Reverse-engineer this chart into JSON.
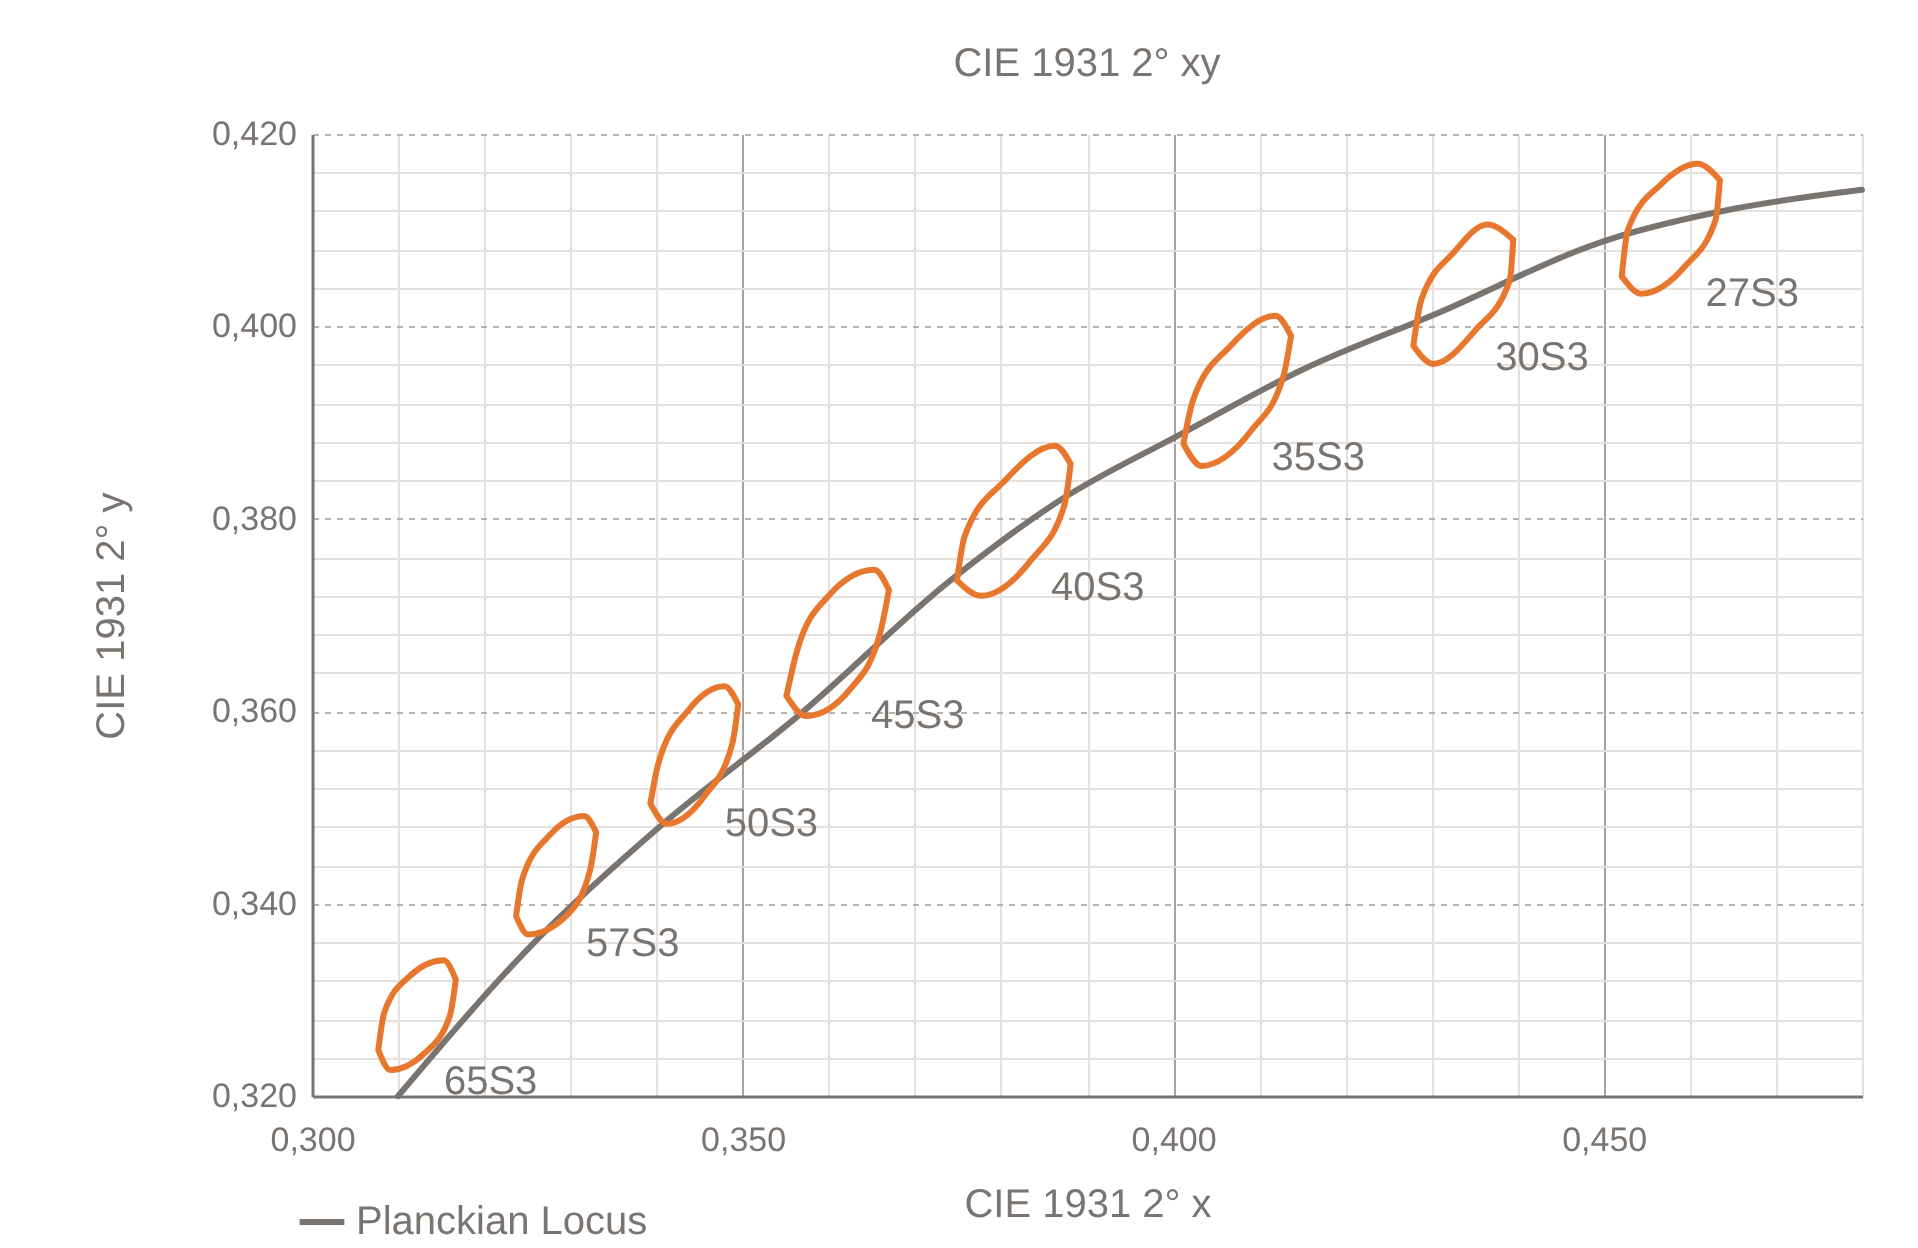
{
  "chart_data": {
    "type": "line",
    "title": "CIE 1931 2° xy",
    "xlabel": "CIE 1931 2° x",
    "ylabel": "CIE 1931 2° y",
    "xlim": [
      0.3,
      0.48
    ],
    "ylim": [
      0.32,
      0.42
    ],
    "xticks": [
      {
        "value": 0.3,
        "label": "0,300"
      },
      {
        "value": 0.31,
        "label": null
      },
      {
        "value": 0.32,
        "label": null
      },
      {
        "value": 0.33,
        "label": null
      },
      {
        "value": 0.34,
        "label": null
      },
      {
        "value": 0.35,
        "label": "0,350"
      },
      {
        "value": 0.36,
        "label": null
      },
      {
        "value": 0.37,
        "label": null
      },
      {
        "value": 0.38,
        "label": null
      },
      {
        "value": 0.39,
        "label": null
      },
      {
        "value": 0.4,
        "label": "0,400"
      },
      {
        "value": 0.41,
        "label": null
      },
      {
        "value": 0.42,
        "label": null
      },
      {
        "value": 0.43,
        "label": null
      },
      {
        "value": 0.44,
        "label": null
      },
      {
        "value": 0.45,
        "label": "0,450"
      },
      {
        "value": 0.46,
        "label": null
      },
      {
        "value": 0.47,
        "label": null
      },
      {
        "value": 0.48,
        "label": null
      }
    ],
    "yticks": [
      {
        "value": 0.32,
        "label": "0,320"
      },
      {
        "value": 0.324,
        "label": null
      },
      {
        "value": 0.328,
        "label": null
      },
      {
        "value": 0.332,
        "label": null
      },
      {
        "value": 0.336,
        "label": null
      },
      {
        "value": 0.34,
        "label": "0,340"
      },
      {
        "value": 0.344,
        "label": null
      },
      {
        "value": 0.348,
        "label": null
      },
      {
        "value": 0.352,
        "label": null
      },
      {
        "value": 0.356,
        "label": null
      },
      {
        "value": 0.36,
        "label": "0,360"
      },
      {
        "value": 0.364,
        "label": null
      },
      {
        "value": 0.368,
        "label": null
      },
      {
        "value": 0.372,
        "label": null
      },
      {
        "value": 0.376,
        "label": null
      },
      {
        "value": 0.38,
        "label": "0,380"
      },
      {
        "value": 0.384,
        "label": null
      },
      {
        "value": 0.388,
        "label": null
      },
      {
        "value": 0.392,
        "label": null
      },
      {
        "value": 0.396,
        "label": null
      },
      {
        "value": 0.4,
        "label": "0,400"
      },
      {
        "value": 0.404,
        "label": null
      },
      {
        "value": 0.408,
        "label": null
      },
      {
        "value": 0.412,
        "label": null
      },
      {
        "value": 0.416,
        "label": null
      },
      {
        "value": 0.42,
        "label": "0,420"
      }
    ],
    "grid": true,
    "legend": "bottom",
    "series": [
      {
        "name": "Planckian Locus",
        "color": "#7a7471",
        "x": [
          0.31,
          0.3265,
          0.3405,
          0.3567,
          0.374,
          0.387,
          0.4009,
          0.415,
          0.4305,
          0.4505,
          0.465,
          0.48
        ],
        "values": [
          0.32,
          0.3366,
          0.3481,
          0.3597,
          0.3735,
          0.382,
          0.3888,
          0.3955,
          0.4013,
          0.409,
          0.4122,
          0.4142
        ]
      },
      {
        "color": "#e8772e",
        "x": [
          0.3077,
          0.3084,
          0.3114,
          0.3153,
          0.3167,
          null,
          0.3077,
          0.3091,
          0.313,
          0.316,
          0.3167
        ],
        "values": [
          0.3248,
          0.3287,
          0.3325,
          0.3341,
          0.3321,
          null,
          0.3248,
          0.3227,
          0.3244,
          0.3283,
          0.3321
        ]
      },
      {
        "color": "#e8772e",
        "x": [
          0.3237,
          0.3244,
          0.3277,
          0.3316,
          0.333,
          null,
          0.3237,
          0.3251,
          0.3295,
          0.3323,
          0.333
        ],
        "values": [
          0.3387,
          0.3425,
          0.3472,
          0.3491,
          0.3474,
          null,
          0.3387,
          0.3368,
          0.3387,
          0.3435,
          0.3474
        ]
      },
      {
        "color": "#e8772e",
        "x": [
          0.3393,
          0.3402,
          0.3437,
          0.3479,
          0.3495,
          null,
          0.3393,
          0.3412,
          0.3456,
          0.3488,
          0.3495
        ],
        "values": [
          0.3504,
          0.3545,
          0.3601,
          0.3626,
          0.3607,
          null,
          0.3504,
          0.3483,
          0.3512,
          0.3566,
          0.3607
        ]
      },
      {
        "color": "#e8772e",
        "x": [
          0.3551,
          0.3563,
          0.36,
          0.3653,
          0.367,
          null,
          0.3551,
          0.3574,
          0.3626,
          0.366,
          0.367
        ],
        "values": [
          0.3616,
          0.3662,
          0.372,
          0.3747,
          0.3726,
          null,
          0.3616,
          0.3595,
          0.3624,
          0.3682,
          0.3726
        ]
      },
      {
        "color": "#e8772e",
        "x": [
          0.3749,
          0.3758,
          0.3805,
          0.3863,
          0.3881,
          null,
          0.3749,
          0.3777,
          0.3835,
          0.3874,
          0.3881
        ],
        "values": [
          0.3736,
          0.3782,
          0.384,
          0.3876,
          0.3857,
          null,
          0.3736,
          0.372,
          0.3757,
          0.3815,
          0.3857
        ]
      },
      {
        "color": "#e8772e",
        "x": [
          0.4012,
          0.4023,
          0.4067,
          0.4119,
          0.4137,
          null,
          0.4012,
          0.4033,
          0.4091,
          0.4128,
          0.4137
        ],
        "values": [
          0.3878,
          0.3923,
          0.398,
          0.4011,
          0.399,
          null,
          0.3878,
          0.3855,
          0.3892,
          0.3948,
          0.399
        ]
      },
      {
        "color": "#e8772e",
        "x": [
          0.4279,
          0.4288,
          0.4326,
          0.4365,
          0.4395,
          null,
          0.4279,
          0.4302,
          0.4351,
          0.4391,
          0.4395
        ],
        "values": [
          0.398,
          0.4027,
          0.4077,
          0.4106,
          0.409,
          null,
          0.398,
          0.3961,
          0.3996,
          0.4048,
          0.409
        ]
      },
      {
        "color": "#e8772e",
        "x": [
          0.4521,
          0.4528,
          0.4567,
          0.4609,
          0.4635,
          null,
          0.4521,
          0.4544,
          0.4595,
          0.463,
          0.4635
        ],
        "values": [
          0.4052,
          0.41,
          0.4148,
          0.4169,
          0.4152,
          null,
          0.4052,
          0.4034,
          0.4063,
          0.4111,
          0.4152
        ]
      }
    ],
    "annotations": [
      {
        "text": "65S3",
        "x": 0.313,
        "y": 0.3244
      },
      {
        "text": "57S3",
        "x": 0.3295,
        "y": 0.3387
      },
      {
        "text": "50S3",
        "x": 0.3456,
        "y": 0.3512
      },
      {
        "text": "45S3",
        "x": 0.3626,
        "y": 0.3624
      },
      {
        "text": "40S3",
        "x": 0.3835,
        "y": 0.3757
      },
      {
        "text": "35S3",
        "x": 0.4091,
        "y": 0.3892
      },
      {
        "text": "30S3",
        "x": 0.4351,
        "y": 0.3996
      },
      {
        "text": "27S3",
        "x": 0.4595,
        "y": 0.4063
      }
    ]
  }
}
